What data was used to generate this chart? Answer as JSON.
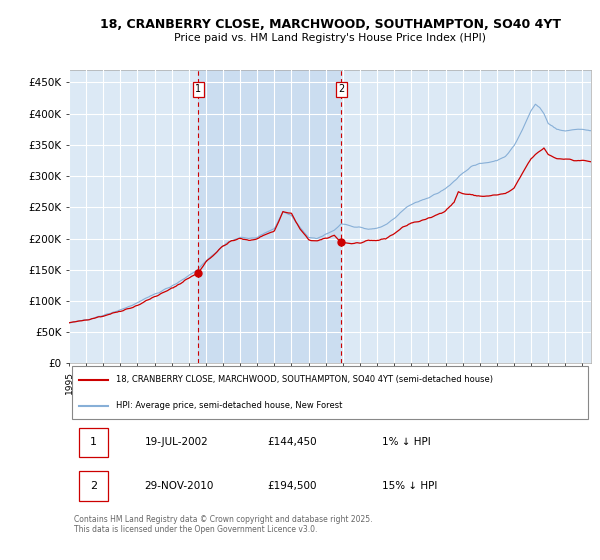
{
  "title_line1": "18, CRANBERRY CLOSE, MARCHWOOD, SOUTHAMPTON, SO40 4YT",
  "title_line2": "Price paid vs. HM Land Registry's House Price Index (HPI)",
  "ylabel_ticks": [
    "£0",
    "£50K",
    "£100K",
    "£150K",
    "£200K",
    "£250K",
    "£300K",
    "£350K",
    "£400K",
    "£450K"
  ],
  "ytick_values": [
    0,
    50000,
    100000,
    150000,
    200000,
    250000,
    300000,
    350000,
    400000,
    450000
  ],
  "ylim": [
    0,
    470000
  ],
  "xlim_start": 1995.0,
  "xlim_end": 2025.5,
  "background_color": "#dce9f5",
  "grid_color": "#ffffff",
  "red_line_color": "#cc0000",
  "blue_line_color": "#87afd7",
  "shade_color": "#c5d8ee",
  "marker1_date": 2002.54,
  "marker1_value": 144450,
  "marker1_label": "1",
  "marker2_date": 2010.91,
  "marker2_value": 194500,
  "marker2_label": "2",
  "legend_line1": "18, CRANBERRY CLOSE, MARCHWOOD, SOUTHAMPTON, SO40 4YT (semi-detached house)",
  "legend_line2": "HPI: Average price, semi-detached house, New Forest",
  "table_row1": [
    "1",
    "19-JUL-2002",
    "£144,450",
    "1% ↓ HPI"
  ],
  "table_row2": [
    "2",
    "29-NOV-2010",
    "£194,500",
    "15% ↓ HPI"
  ],
  "footer": "Contains HM Land Registry data © Crown copyright and database right 2025.\nThis data is licensed under the Open Government Licence v3.0."
}
